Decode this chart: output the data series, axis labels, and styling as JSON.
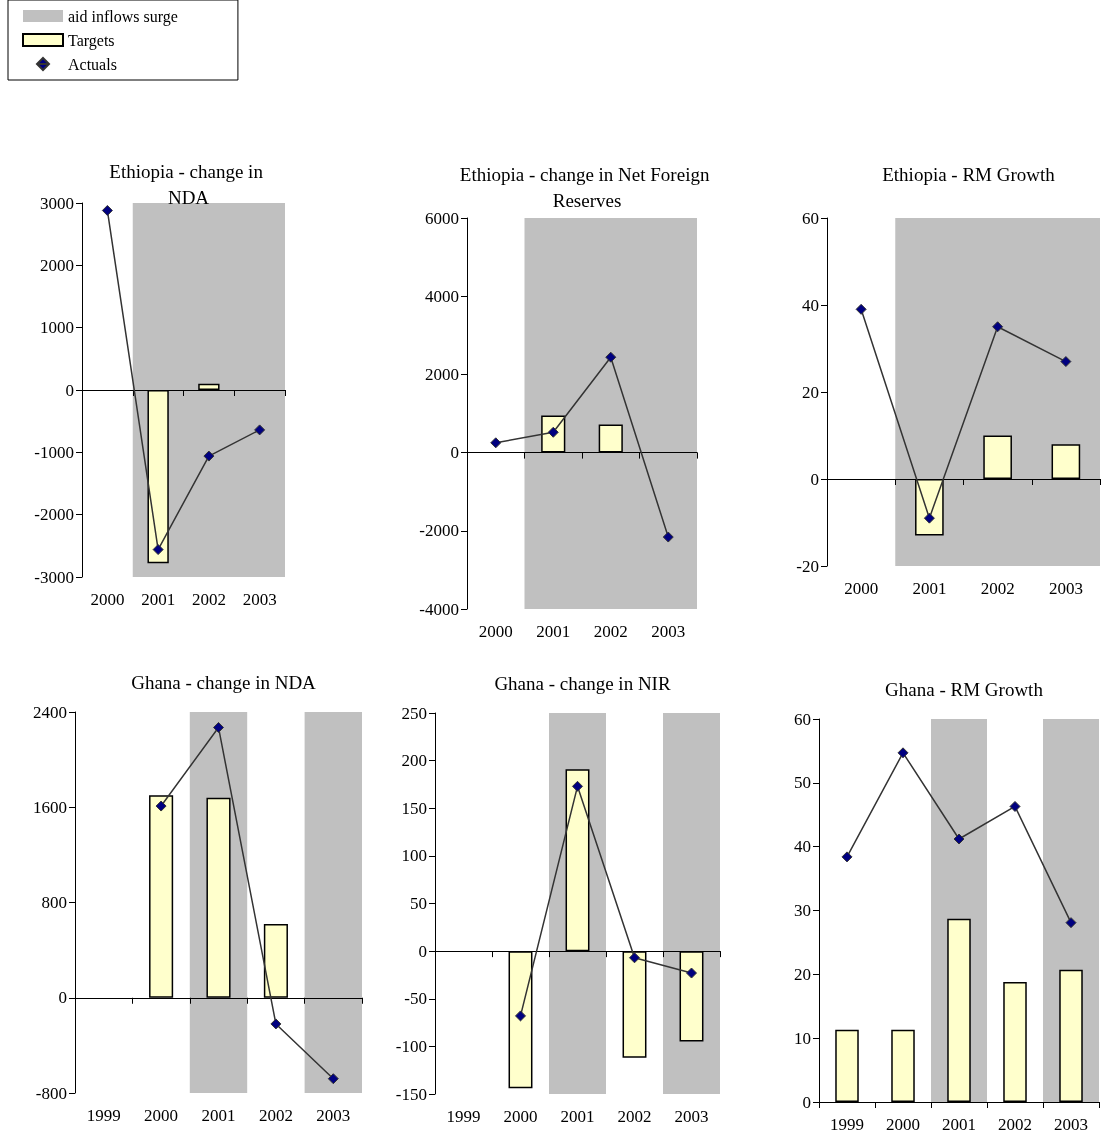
{
  "chart_data": [
    {
      "type": "bar",
      "title": "Ethiopia - change in NDA",
      "categories": [
        "2000",
        "2001",
        "2002",
        "2003"
      ],
      "marker": "diamond",
      "legend": "top left",
      "series": [
        {
          "name": "Targets",
          "type": "bar",
          "color": "#ffffcc",
          "values": [
            null,
            -2780,
            100,
            null
          ]
        },
        {
          "name": "Actuals",
          "type": "line",
          "color": "#000080",
          "values": [
            2880,
            -2560,
            -1060,
            -640
          ]
        }
      ],
      "ylim": [
        -3000,
        3000
      ],
      "yticks": [
        -3000,
        -2000,
        -1000,
        0,
        1000,
        2000,
        3000
      ],
      "bands": [
        {
          "axis": "x",
          "from": "2001",
          "to": "2003",
          "label": "aid inflows surge",
          "color": "#c0c0c0"
        }
      ]
    },
    {
      "type": "bar",
      "title": "Ethiopia - change in Net Foreign Reserves",
      "categories": [
        "2000",
        "2001",
        "2002",
        "2003"
      ],
      "marker": "diamond",
      "series": [
        {
          "type": "bar",
          "color": "#ffffcc",
          "values": [
            null,
            950,
            720,
            null
          ]
        },
        {
          "type": "line",
          "color": "#000080",
          "values": [
            250,
            520,
            2440,
            -2160
          ]
        }
      ],
      "ylim": [
        -4000,
        6000
      ],
      "yticks": [
        -4000,
        -2000,
        0,
        2000,
        4000,
        6000
      ],
      "bands": [
        {
          "axis": "x",
          "from": "2001",
          "to": "2003",
          "color": "#c0c0c0"
        }
      ]
    },
    {
      "type": "bar",
      "title": "Ethiopia - RM Growth",
      "categories": [
        "2000",
        "2001",
        "2002",
        "2003"
      ],
      "marker": "diamond",
      "series": [
        {
          "type": "bar",
          "color": "#ffffcc",
          "values": [
            null,
            -13,
            10,
            8
          ]
        },
        {
          "type": "line",
          "color": "#000080",
          "values": [
            39,
            -9,
            35,
            27
          ]
        }
      ],
      "ylim": [
        -20,
        60
      ],
      "yticks": [
        -20,
        0,
        20,
        40,
        60
      ],
      "bands": [
        {
          "axis": "x",
          "from": "2001",
          "to": "2003",
          "color": "#c0c0c0"
        }
      ]
    },
    {
      "type": "bar",
      "title": "Ghana - change in NDA",
      "categories": [
        "1999",
        "2000",
        "2001",
        "2002",
        "2003"
      ],
      "marker": "diamond",
      "series": [
        {
          "type": "bar",
          "color": "#ffffcc",
          "values": [
            null,
            1700,
            1680,
            620,
            null
          ]
        },
        {
          "type": "line",
          "color": "#000080",
          "values": [
            null,
            1610,
            2270,
            -220,
            -680
          ]
        }
      ],
      "ylim": [
        -800,
        2400
      ],
      "yticks": [
        -800,
        0,
        800,
        1600,
        2400
      ],
      "bands": [
        {
          "axis": "x",
          "from": "2001",
          "to": "2001",
          "color": "#c0c0c0"
        },
        {
          "axis": "x",
          "from": "2003",
          "to": "2003",
          "color": "#c0c0c0"
        }
      ]
    },
    {
      "type": "bar",
      "title": "Ghana - change in NIR",
      "categories": [
        "1999",
        "2000",
        "2001",
        "2002",
        "2003"
      ],
      "marker": "diamond",
      "series": [
        {
          "type": "bar",
          "color": "#ffffcc",
          "values": [
            null,
            -144,
            191,
            -112,
            -95
          ]
        },
        {
          "type": "line",
          "color": "#000080",
          "values": [
            null,
            -68,
            173,
            -7,
            -23
          ]
        }
      ],
      "ylim": [
        -150,
        250
      ],
      "yticks": [
        -150,
        -100,
        -50,
        0,
        50,
        100,
        150,
        200,
        250
      ],
      "bands": [
        {
          "axis": "x",
          "from": "2001",
          "to": "2001",
          "color": "#c0c0c0"
        },
        {
          "axis": "x",
          "from": "2003",
          "to": "2003",
          "color": "#c0c0c0"
        }
      ]
    },
    {
      "type": "bar",
      "title": "Ghana - RM Growth",
      "categories": [
        "1999",
        "2000",
        "2001",
        "2002",
        "2003"
      ],
      "marker": "diamond",
      "series": [
        {
          "type": "bar",
          "color": "#ffffcc",
          "values": [
            11.3,
            11.3,
            28.7,
            18.8,
            20.7
          ]
        },
        {
          "type": "line",
          "color": "#000080",
          "values": [
            38.4,
            54.7,
            41.2,
            46.3,
            28.1
          ]
        }
      ],
      "ylim": [
        0,
        60
      ],
      "yticks": [
        0,
        10,
        20,
        30,
        40,
        50,
        60
      ],
      "bands": [
        {
          "axis": "x",
          "from": "2001",
          "to": "2001",
          "color": "#c0c0c0"
        },
        {
          "axis": "x",
          "from": "2003",
          "to": "2003",
          "color": "#c0c0c0"
        }
      ]
    }
  ]
}
